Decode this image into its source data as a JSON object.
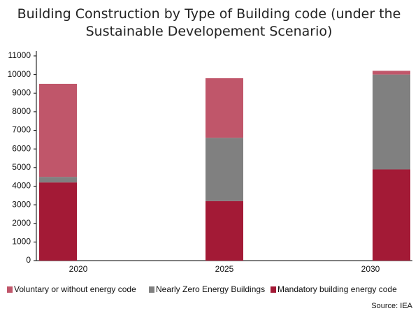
{
  "chart_data": {
    "type": "stacked_bar",
    "title": "Building Construction by Type of Building code (under the Sustainable Developement Scenario)",
    "categories": [
      "2020",
      "2025",
      "2030"
    ],
    "series": [
      {
        "name": "Mandatory building energy code",
        "color": "#a31a36",
        "values": [
          4200,
          3200,
          4900
        ]
      },
      {
        "name": "Nearly Zero Energy Buildings",
        "color": "#808080",
        "values": [
          300,
          3400,
          5100
        ]
      },
      {
        "name": "Voluntary or without energy code",
        "color": "#c0566a",
        "values": [
          5000,
          3200,
          200
        ]
      }
    ],
    "ylim": [
      0,
      11000
    ],
    "yticks": [
      0,
      1000,
      2000,
      3000,
      4000,
      5000,
      6000,
      7000,
      8000,
      9000,
      10000,
      11000
    ],
    "source": "Source: IEA"
  }
}
